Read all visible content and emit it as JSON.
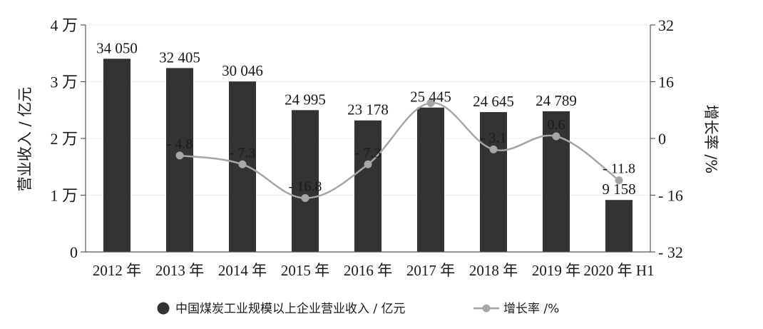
{
  "chart_data": {
    "type": "bar",
    "categories": [
      "2012 年",
      "2013 年",
      "2014 年",
      "2015 年",
      "2016 年",
      "2017 年",
      "2018 年",
      "2019 年",
      "2020 年 H1"
    ],
    "series": [
      {
        "name": "中国煤炭工业规模以上企业营业收入 / 亿元",
        "type": "bar",
        "axis": "left",
        "color": "#333333",
        "values": [
          34050,
          32405,
          30046,
          24995,
          23178,
          25445,
          24645,
          24789,
          9158
        ],
        "labels": [
          "34 050",
          "32 405",
          "30 046",
          "24 995",
          "23 178",
          "25 445",
          "24 645",
          "24 789",
          "9 158"
        ]
      },
      {
        "name": "增长率 /%",
        "type": "line",
        "axis": "right",
        "color": "#a6a6a6",
        "values": [
          null,
          -4.8,
          -7.3,
          -16.8,
          -7.3,
          10,
          -3.1,
          0.6,
          -11.8
        ],
        "labels": [
          "",
          "- 4.8",
          "- 7.3",
          "- 16.8",
          "- 7.3",
          "",
          "- 3.1",
          "0.6",
          "- 11.8"
        ]
      }
    ],
    "ylabel": "营业收入 / 亿元",
    "y2label": "增长率 /%",
    "ylim": [
      0,
      40000
    ],
    "y2lim": [
      -32,
      32
    ],
    "yticks": [
      0,
      10000,
      20000,
      30000,
      40000
    ],
    "yticklabels": [
      "0",
      "1 万",
      "2 万",
      "3 万",
      "4 万"
    ],
    "y2ticks": [
      -32,
      -16,
      0,
      16,
      32
    ],
    "y2ticklabels": [
      "- 32",
      "- 16",
      "0",
      "16",
      "32"
    ],
    "grid": true,
    "legend_position": "bottom-center"
  }
}
